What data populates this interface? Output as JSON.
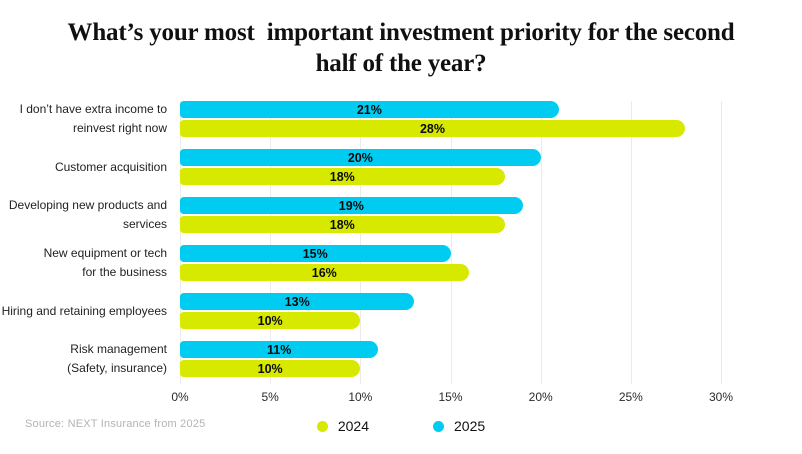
{
  "title": "What’s your most  important investment priority for the second\nhalf of the year?",
  "source_note": "Source: NEXT Insurance from 2025",
  "colors": {
    "series_2024": "#D8E900",
    "series_2025": "#00CCF2",
    "gridline": "#ebebeb",
    "background": "#ffffff"
  },
  "legend": {
    "items": [
      {
        "label": "2024",
        "color": "#D8E900"
      },
      {
        "label": "2025",
        "color": "#00CCF2"
      }
    ]
  },
  "chart_data": {
    "type": "bar",
    "orientation": "horizontal",
    "title": "What’s your most  important investment priority for the second half of the year?",
    "categories": [
      "I don’t have extra income to\nreinvest right now",
      "Customer acquisition",
      "Developing new products and\nservices",
      "New equipment or tech\nfor the business",
      "Hiring and retaining employees",
      "Risk management\n(Safety, insurance)"
    ],
    "series": [
      {
        "name": "2025",
        "color": "#00CCF2",
        "values": [
          21,
          20,
          19,
          15,
          13,
          11
        ]
      },
      {
        "name": "2024",
        "color": "#D8E900",
        "values": [
          28,
          18,
          18,
          16,
          10,
          10
        ]
      }
    ],
    "value_suffix": "%",
    "xlim": [
      0,
      30
    ],
    "xtick_values": [
      0,
      5,
      10,
      15,
      20,
      25,
      30
    ],
    "xtick_labels": [
      "0%",
      "5%",
      "10%",
      "15%",
      "20%",
      "25%",
      "30%"
    ],
    "grid": "vertical",
    "legend_position": "bottom"
  }
}
